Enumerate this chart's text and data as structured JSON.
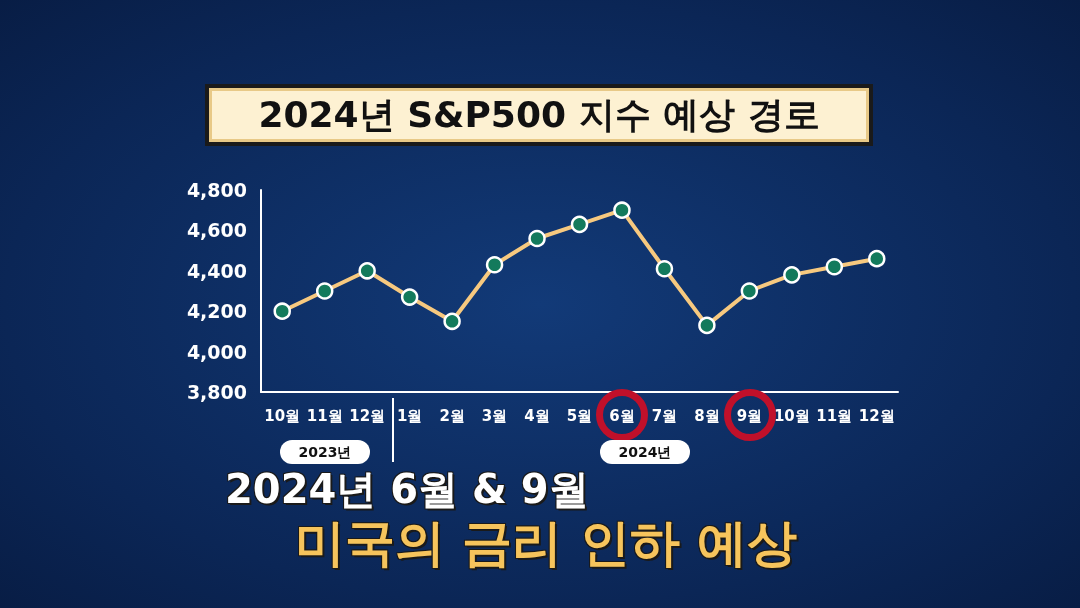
{
  "chart_data": {
    "type": "line",
    "title": "2024년 S&P500 지수 예상 경로",
    "categories": [
      "10월",
      "11월",
      "12월",
      "1월",
      "2월",
      "3월",
      "4월",
      "5월",
      "6월",
      "7월",
      "8월",
      "9월",
      "10월",
      "11월",
      "12월"
    ],
    "series": [
      {
        "color": "#f7c97f",
        "values": [
          4200,
          4300,
          4400,
          4270,
          4150,
          4430,
          4560,
          4630,
          4700,
          4410,
          4130,
          4300,
          4380,
          4420,
          4460
        ]
      }
    ],
    "ylim": [
      3800,
      4800
    ],
    "yticks": [
      {
        "value": 3800,
        "label": "3,800"
      },
      {
        "value": 4000,
        "label": "4,000"
      },
      {
        "value": 4200,
        "label": "4,200"
      },
      {
        "value": 4400,
        "label": "4,400"
      },
      {
        "value": 4600,
        "label": "4,600"
      },
      {
        "value": 4800,
        "label": "4,800"
      }
    ],
    "annotations": [
      "2023년",
      "2024년",
      "2024년 6월 & 9월",
      "미국의 금리 인하 예상"
    ],
    "grid": false,
    "marker": "circle",
    "line_style": "solid"
  }
}
